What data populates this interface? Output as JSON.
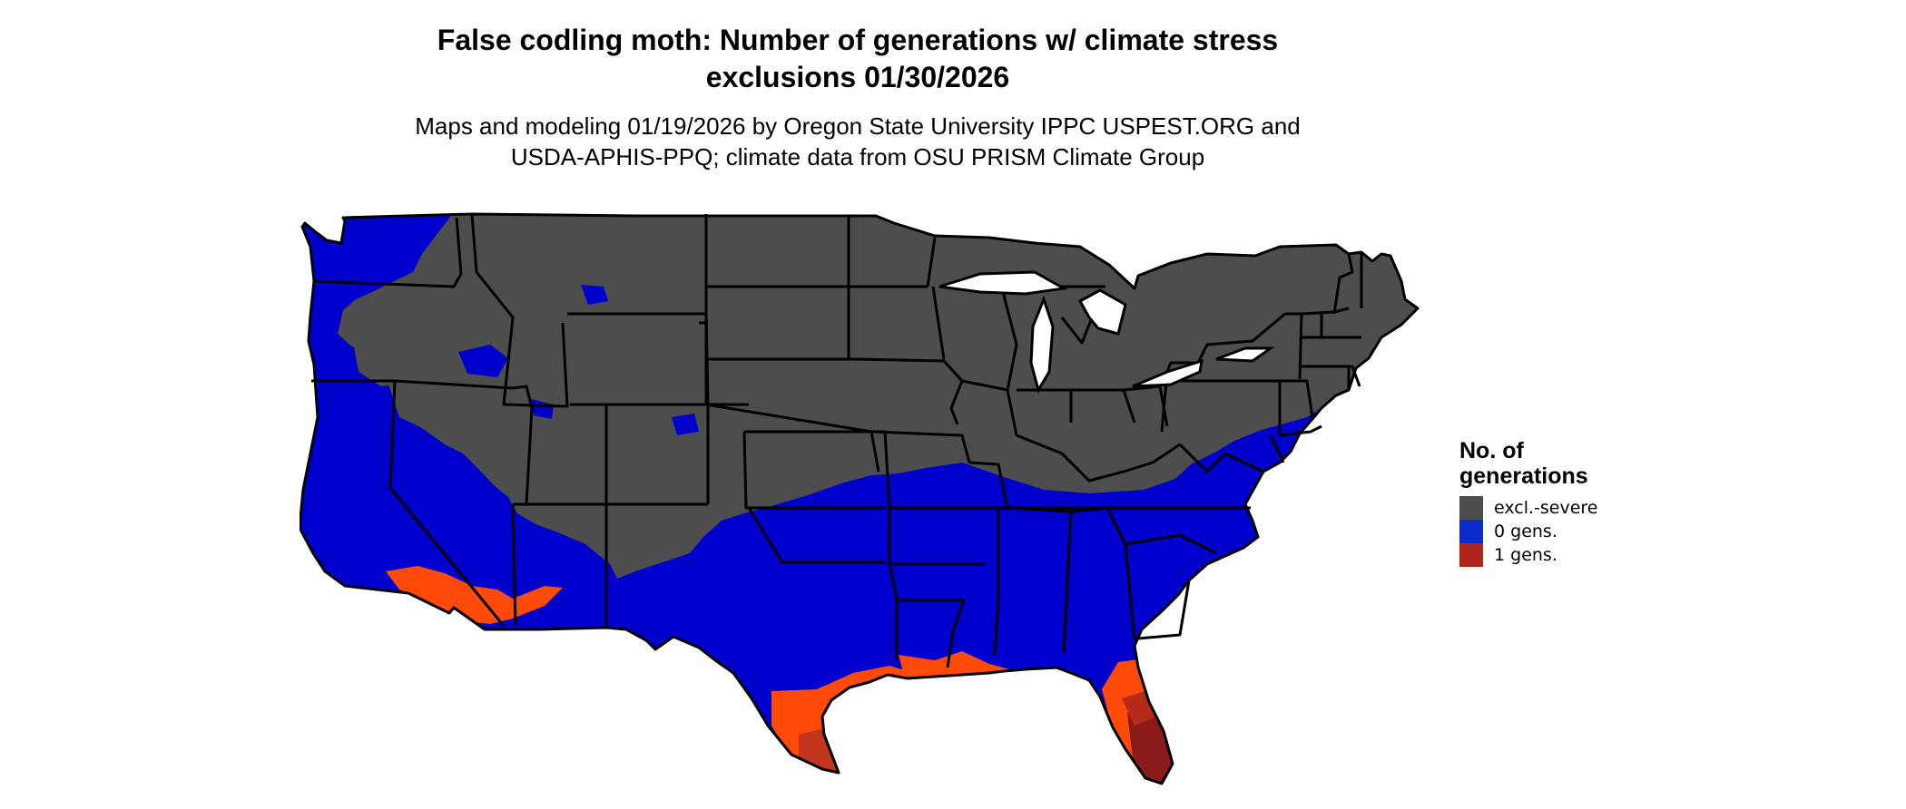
{
  "title": {
    "line1": "False codling moth: Number of generations w/ climate stress",
    "line2": "exclusions 01/30/2026"
  },
  "subtitle": {
    "line1": "Maps and modeling 01/19/2026 by Oregon State University IPPC USPEST.ORG and",
    "line2": "USDA-APHIS-PPQ; climate data from OSU PRISM Climate Group"
  },
  "legend": {
    "title_line1": "No. of",
    "title_line2": "generations",
    "items": [
      {
        "label": "excl.-severe",
        "color": "#4d4d4d"
      },
      {
        "label": "0 gens.",
        "color": "#0a2ccc"
      },
      {
        "label": "1 gens.",
        "color": "#b0241c"
      }
    ]
  },
  "map_colors": {
    "excluded": "#4d4d4d",
    "zero_generations": "#0000cc",
    "one_generation_light": "#ff4a0a",
    "one_generation_dark": "#8b1a1a",
    "state_borders": "#000000"
  }
}
